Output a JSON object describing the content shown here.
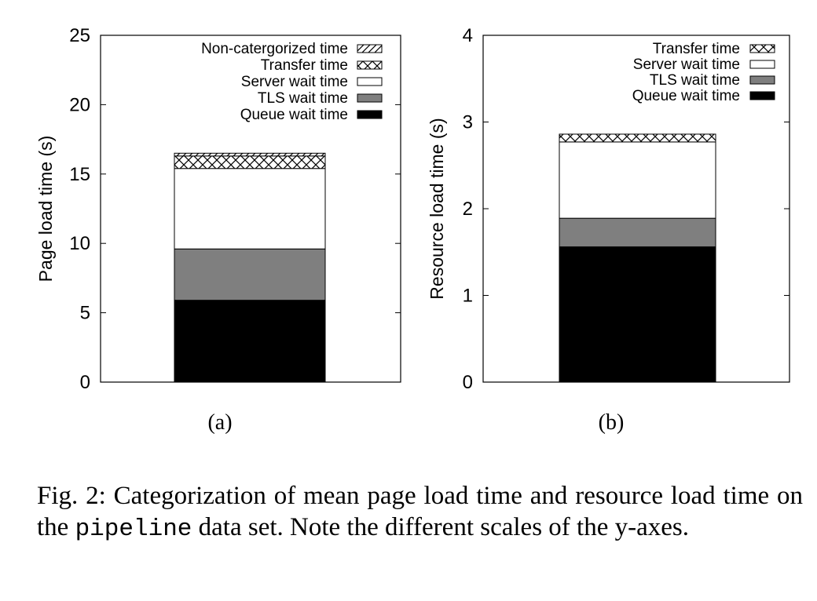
{
  "chart_data": [
    {
      "type": "stacked-bar",
      "panel_label": "(a)",
      "ylabel": "Page load time (s)",
      "ylim": [
        0,
        25
      ],
      "yticks": [
        "0",
        "5",
        "10",
        "15",
        "20",
        "25"
      ],
      "legend_placement": "top-right",
      "legend": [
        "Non-catergorized time",
        "Transfer time",
        "Server wait time",
        "TLS wait time",
        "Queue wait time"
      ],
      "series": [
        {
          "name": "Queue wait time",
          "value": 5.9,
          "fill": "solid-black"
        },
        {
          "name": "TLS wait time",
          "value": 3.7,
          "fill": "solid-gray"
        },
        {
          "name": "Server wait time",
          "value": 5.8,
          "fill": "white"
        },
        {
          "name": "Transfer time",
          "value": 0.9,
          "fill": "crosshatch"
        },
        {
          "name": "Non-catergorized time",
          "value": 0.2,
          "fill": "diagonal-hatch"
        }
      ]
    },
    {
      "type": "stacked-bar",
      "panel_label": "(b)",
      "ylabel": "Resource load time (s)",
      "ylim": [
        0,
        4
      ],
      "yticks": [
        "0",
        "1",
        "2",
        "3",
        "4"
      ],
      "legend_placement": "top-right",
      "legend": [
        "Transfer time",
        "Server wait time",
        "TLS wait time",
        "Queue wait time"
      ],
      "series": [
        {
          "name": "Queue wait time",
          "value": 1.56,
          "fill": "solid-black"
        },
        {
          "name": "TLS wait time",
          "value": 0.33,
          "fill": "solid-gray"
        },
        {
          "name": "Server wait time",
          "value": 0.88,
          "fill": "white"
        },
        {
          "name": "Transfer time",
          "value": 0.09,
          "fill": "crosshatch"
        }
      ]
    }
  ],
  "caption": {
    "prefix": "Fig. 2:  Categorization of mean page load time and resource load time on the",
    "mono": "pipeline",
    "suffix": "data set. Note the different scales of the y-axes."
  },
  "colors": {
    "solid-black": "#000000",
    "solid-gray": "#7f7f7f",
    "white": "#ffffff",
    "axis": "#000000"
  }
}
